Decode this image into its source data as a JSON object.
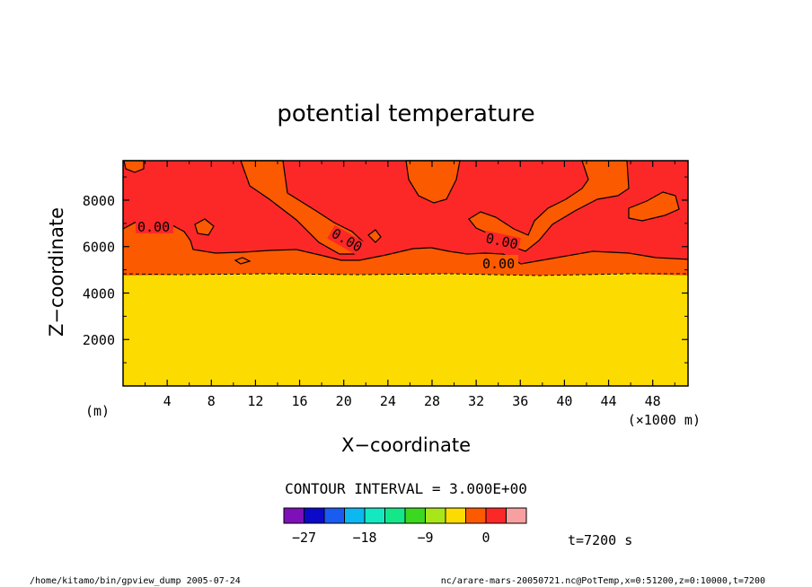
{
  "chart_data": {
    "type": "contour",
    "title": "potential temperature",
    "xlabel": "X−coordinate",
    "ylabel": "Z−coordinate",
    "x_unit_left": "(m)",
    "x_unit": "(×1000 m)",
    "xlim": [
      0,
      51.2
    ],
    "ylim": [
      0,
      9700
    ],
    "x_ticks": [
      4,
      8,
      12,
      16,
      20,
      24,
      28,
      32,
      36,
      40,
      44,
      48
    ],
    "x_tick_labels": [
      "4",
      "8",
      "12",
      "16",
      "20",
      "24",
      "28",
      "32",
      "36",
      "40",
      "44",
      "48"
    ],
    "y_ticks": [
      2000,
      4000,
      6000,
      8000
    ],
    "y_tick_labels": [
      "2000",
      "4000",
      "6000",
      "8000"
    ],
    "contour_labels": [
      "0.00",
      "0.00",
      "0.00",
      "0.00"
    ],
    "contour_interval_text": "CONTOUR INTERVAL = 3.000E+00",
    "colorbar": {
      "colors": [
        "#7e10b8",
        "#0a0ac8",
        "#1a5cf0",
        "#0cb8f0",
        "#14e8c0",
        "#14e68a",
        "#3cd820",
        "#a8e61a",
        "#fcdc00",
        "#fc5a00",
        "#fc2828",
        "#f8a0a0"
      ],
      "tick_values": [
        -27,
        -18,
        -9,
        0
      ],
      "tick_labels": [
        "−27",
        "−18",
        "−9",
        "0"
      ]
    },
    "regions": {
      "lower_color": "#fcdc00",
      "middle_color": "#fc5a00",
      "upper_color": "#fc2828"
    }
  },
  "time_label": "t=7200 s",
  "footer": {
    "left": "/home/kitamo/bin/gpview_dump  2005-07-24",
    "right": "nc/arare-mars-20050721.nc@PotTemp,x=0:51200,z=0:10000,t=7200"
  }
}
